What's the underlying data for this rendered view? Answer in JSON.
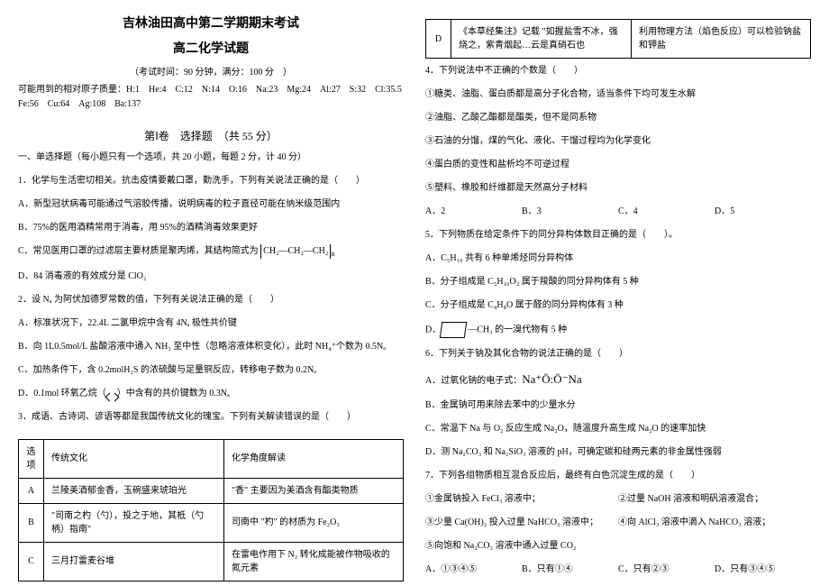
{
  "header": {
    "title1": "吉林油田高中第二学期期末考试",
    "title2": "高二化学试题",
    "exam_info": "（考试时间：90 分钟，满分：100 分　）",
    "atomic_mass_label": "可能用到的相对原子质量：H:1　He:4　C:12　N:14　O:16　Na:23　Mg:24　Al:27　S:32　Cl:35.5　Fe:56　Cu:64　Ag:108　Ba:137",
    "section1": "第Ⅰ卷　选择题　（共 55 分）",
    "part1_intro": "一、单选择题（每小题只有一个选项，共 20 小题，每题 2 分，计 40 分）"
  },
  "q1": {
    "stem": "1．化学与生活密切相关。抗击疫情要戴口罩，勤洗手，下列有关说法正确的是（　　）",
    "a": "A．新型冠状病毒可能通过气溶胶传播，说明病毒的粒子直径可能在纳米级范围内",
    "b": "B．75%的医用酒精常用于消毒，用 95%的酒精消毒效果更好",
    "c": "C．常见医用口罩的过滤层主要材质是聚丙烯，其结构简式为",
    "c_struct": "CH₂—CH₂—CH₂",
    "c_suffix": "n",
    "d": "D．84 消毒液的有效成分是 ClO₂"
  },
  "q2": {
    "stem": "2．设 Nₐ 为阿伏加德罗常数的值，下列有关说法正确的是（　　）",
    "a": "A．标准状况下，22.4L 二氯甲烷中含有 4Nₐ 极性共价键",
    "b": "B．向 1L0.5mol/L 盐酸溶液中通入 NH₃ 至中性（忽略溶液体积变化），此时 NH₄⁺个数为 0.5Nₐ",
    "c_prefix": "C．加热条件下，含 0.2molH₂S 的浓硫酸与足量铜反应，转移电子数为 0.2Nₐ",
    "d_prefix": "D．0.1mol 环氧乙烷（",
    "d_suffix": "）中含有的共价键数为 0.3Nₐ"
  },
  "q3": {
    "stem": "3．成语、古诗词、谚语等都是我国传统文化的瑰宝。下列有关解读错误的是（　　）",
    "table_head": {
      "c1": "选项",
      "c2": "传统文化",
      "c3": "化学角度解读"
    },
    "rows": [
      {
        "c1": "A",
        "c2": "兰陵美酒郁金香，玉碗盛来琥珀光",
        "c3": "\"香\" 主要因为美酒含有酯类物质"
      },
      {
        "c1": "B",
        "c2": "\"司南之杓（勺），投之于地，其柢（勺柄）指南\"",
        "c3": "司南中 \"杓\" 的材质为 Fe₂O₃"
      },
      {
        "c1": "C",
        "c2": "三月打雷麦谷堆",
        "c3": "在雷电作用下 N₂ 转化成能被作物吸收的氮元素"
      },
      {
        "c1": "D",
        "c2": "《本草经集注》记载 \"如握盐雪不冰，强烧之，紫青烟起…云是真硝石也",
        "c3": "利用物理方法（焰色反应）可以检验钠盐和钾盐"
      }
    ]
  },
  "q4": {
    "stem": "4．下列说法中不正确的个数是（　　）",
    "s1": "①糖类、油脂、蛋白质都是高分子化合物，适当条件下均可发生水解",
    "s2": "②油脂、乙酸乙酯都是酯类，但不是同系物",
    "s3": "③石油的分馏，煤的气化、液化、干馏过程均为化学变化",
    "s4": "④蛋白质的变性和盐析均不可逆过程",
    "s5": "⑤塑料、橡胶和纤维都是天然高分子材料",
    "opts": {
      "a": "A．2",
      "b": "B．3",
      "c": "C．4",
      "d": "D．5"
    }
  },
  "q5": {
    "stem": "5．下列物质在给定条件下的同分异构体数目正确的是（　　）。",
    "a": "A．C₅H₁₀ 共有 6 种单烯烃同分异构体",
    "b": "B．分子组成是 C₅H₁₀O₂ 属于羧酸的同分异构体有 5 种",
    "c": "C．分子组成是 C₄H₈O 属于醛的同分异构体有 3 种",
    "d_suffix": "—CH₃ 的一溴代物有 5 种",
    "d_prefix": "D．"
  },
  "q6": {
    "stem": "6．下列关于钠及其化合物的说法正确的是（　　）",
    "a_prefix": "A．过氧化钠的电子式：",
    "a_formula": "Na⁺Ö:Ö⁻Na",
    "b": "B．金属钠可用来除去苯中的少量水分",
    "c": "C．常温下 Na 与 O₂ 反应生成 Na₂O，随温度升高生成 Na₂O 的速率加快",
    "d": "D．测 Na₂CO₃ 和 Na₂SiO₃ 溶液的 pH，可确定碳和硅两元素的非金属性强弱"
  },
  "q7": {
    "stem": "7．下列各组物质相互混合反应后，最终有白色沉淀生成的是（　　）",
    "s1": "①金属钠投入 FeCl₃ 溶液中；",
    "s2": "②过量 NaOH 溶液和明矾溶液混合；",
    "s3": "③少量 Ca(OH)₂ 投入过量 NaHCO₃ 溶液中；",
    "s4": "④向 AlCl₃ 溶液中滴入 NaHCO₃ 溶液；",
    "s5": "⑤向饱和 Na₂CO₃ 溶液中通入过量 CO₂",
    "opts": {
      "a": "A．①③④⑤",
      "b": "B．只有①④",
      "c": "C．只有②③",
      "d": "D．只有③④⑤"
    }
  }
}
